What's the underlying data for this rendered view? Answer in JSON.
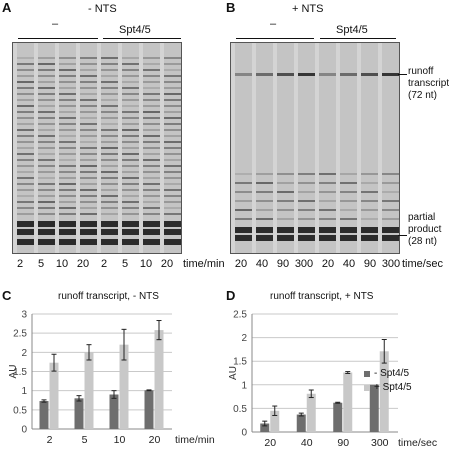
{
  "panels": {
    "A": {
      "letter": "A",
      "condition": "- NTS",
      "group_minus": "–",
      "group_spt": "Spt4/5",
      "lanes": [
        "2",
        "5",
        "10",
        "20",
        "2",
        "5",
        "10",
        "20"
      ],
      "unit": "time/min"
    },
    "B": {
      "letter": "B",
      "condition": "+ NTS",
      "group_minus": "–",
      "group_spt": "Spt4/5",
      "lanes": [
        "20",
        "40",
        "90",
        "300",
        "20",
        "40",
        "90",
        "300"
      ],
      "unit": "time/sec",
      "runoff_label": [
        "runoff",
        "transcript",
        "(72 nt)"
      ],
      "partial_label": [
        "partial",
        "product",
        "(28 nt)"
      ]
    },
    "C": {
      "letter": "C"
    },
    "D": {
      "letter": "D"
    }
  },
  "chart_data": [
    {
      "type": "bar",
      "title": "runoff transcript, - NTS",
      "ylabel": "AU",
      "xlabel": "time/min",
      "categories": [
        "2",
        "5",
        "10",
        "20"
      ],
      "ylim": [
        0,
        3
      ],
      "yticks": [
        "0",
        "0.5",
        "1",
        "1.5",
        "2",
        "2.5",
        "3"
      ],
      "series": [
        {
          "values": [
            0.73,
            0.8,
            0.9,
            1.01
          ],
          "errors": [
            0.03,
            0.07,
            0.1,
            0.01
          ],
          "color": "#6e6e6e"
        },
        {
          "values": [
            1.73,
            2.0,
            2.2,
            2.58
          ],
          "errors": [
            0.22,
            0.2,
            0.4,
            0.25
          ],
          "color": "#c8c8c8"
        }
      ]
    },
    {
      "type": "bar",
      "title": "runoff transcript, + NTS",
      "ylabel": "AU",
      "xlabel": "time/sec",
      "categories": [
        "20",
        "40",
        "90",
        "300"
      ],
      "ylim": [
        0,
        2.5
      ],
      "yticks": [
        "0",
        "0.5",
        "1",
        "1.5",
        "2",
        "2.5"
      ],
      "legend_position": "right",
      "series": [
        {
          "name": "- Spt4/5",
          "values": [
            0.18,
            0.37,
            0.62,
            1.0
          ],
          "errors": [
            0.05,
            0.03,
            0.01,
            0.0
          ],
          "color": "#6e6e6e"
        },
        {
          "name": "+ Spt4/5",
          "values": [
            0.45,
            0.81,
            1.26,
            1.71
          ],
          "errors": [
            0.1,
            0.08,
            0.02,
            0.25
          ],
          "color": "#c8c8c8"
        }
      ]
    }
  ]
}
